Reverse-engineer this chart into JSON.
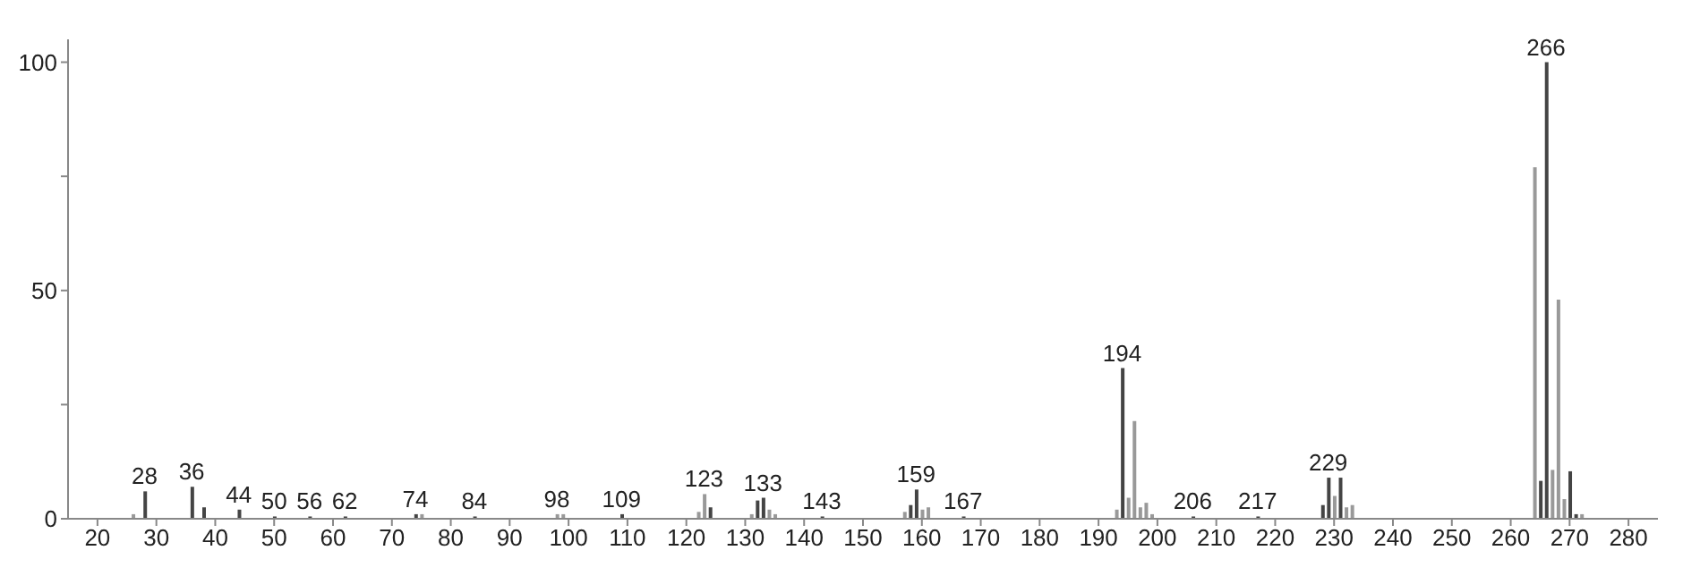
{
  "chart_data": {
    "type": "bar",
    "x": [
      26,
      28,
      36,
      38,
      44,
      50,
      56,
      62,
      74,
      75,
      84,
      98,
      99,
      109,
      122,
      123,
      124,
      131,
      132,
      133,
      134,
      135,
      143,
      157,
      158,
      159,
      160,
      161,
      167,
      193,
      194,
      195,
      196,
      197,
      198,
      199,
      206,
      217,
      228,
      229,
      230,
      231,
      232,
      233,
      264,
      265,
      266,
      267,
      268,
      269,
      270,
      271,
      272
    ],
    "values": [
      1,
      6,
      7,
      2.5,
      2,
      0.5,
      0.5,
      0.5,
      1,
      1,
      0.5,
      1,
      1,
      1,
      1.5,
      5.4,
      2.5,
      1,
      4,
      4.6,
      2,
      1,
      0.5,
      1.5,
      3,
      6.4,
      2,
      2.5,
      0.5,
      2,
      33,
      4.6,
      21.4,
      2.5,
      3.5,
      1,
      0.5,
      0.5,
      3,
      9,
      5,
      9,
      2.5,
      3,
      77,
      8.3,
      100,
      10.7,
      48,
      4.3,
      10.4,
      1,
      1
    ],
    "colors": [
      "#999999",
      "#444444",
      "#444444",
      "#444444",
      "#444444",
      "#444444",
      "#444444",
      "#444444",
      "#444444",
      "#999999",
      "#444444",
      "#999999",
      "#999999",
      "#444444",
      "#999999",
      "#999999",
      "#444444",
      "#999999",
      "#444444",
      "#444444",
      "#999999",
      "#999999",
      "#444444",
      "#999999",
      "#444444",
      "#444444",
      "#999999",
      "#999999",
      "#444444",
      "#999999",
      "#444444",
      "#999999",
      "#999999",
      "#999999",
      "#999999",
      "#999999",
      "#444444",
      "#444444",
      "#444444",
      "#444444",
      "#999999",
      "#444444",
      "#999999",
      "#999999",
      "#999999",
      "#444444",
      "#444444",
      "#999999",
      "#999999",
      "#999999",
      "#444444",
      "#444444",
      "#999999"
    ],
    "xlim": [
      15,
      285
    ],
    "xticks": [
      20,
      30,
      40,
      50,
      60,
      70,
      80,
      90,
      100,
      110,
      120,
      130,
      140,
      150,
      160,
      170,
      180,
      190,
      200,
      210,
      220,
      230,
      240,
      250,
      260,
      270,
      280
    ],
    "ylim": [
      0,
      105
    ],
    "yticks": [
      0,
      {
        "value": 25,
        "label": null
      },
      50,
      {
        "value": 75,
        "label": null
      },
      100
    ],
    "grid": false,
    "legend": false,
    "annotations": [
      {
        "text": "28",
        "x": 28,
        "y": 6
      },
      {
        "text": "36",
        "x": 36,
        "y": 7
      },
      {
        "text": "44",
        "x": 44,
        "y": 2
      },
      {
        "text": "50",
        "x": 50,
        "y": 0.5
      },
      {
        "text": "56",
        "x": 56,
        "y": 0.5
      },
      {
        "text": "62",
        "x": 62,
        "y": 0.5
      },
      {
        "text": "74",
        "x": 74,
        "y": 1
      },
      {
        "text": "84",
        "x": 84,
        "y": 0.5
      },
      {
        "text": "98",
        "x": 98,
        "y": 1
      },
      {
        "text": "109",
        "x": 109,
        "y": 1
      },
      {
        "text": "123",
        "x": 123,
        "y": 5.4
      },
      {
        "text": "133",
        "x": 133,
        "y": 4.6
      },
      {
        "text": "143",
        "x": 143,
        "y": 0.5
      },
      {
        "text": "159",
        "x": 159,
        "y": 6.4
      },
      {
        "text": "167",
        "x": 167,
        "y": 0.5
      },
      {
        "text": "194",
        "x": 194,
        "y": 33
      },
      {
        "text": "206",
        "x": 206,
        "y": 0.5
      },
      {
        "text": "217",
        "x": 217,
        "y": 0.5
      },
      {
        "text": "229",
        "x": 229,
        "y": 9
      },
      {
        "text": "266",
        "x": 266,
        "y": 100
      }
    ]
  }
}
